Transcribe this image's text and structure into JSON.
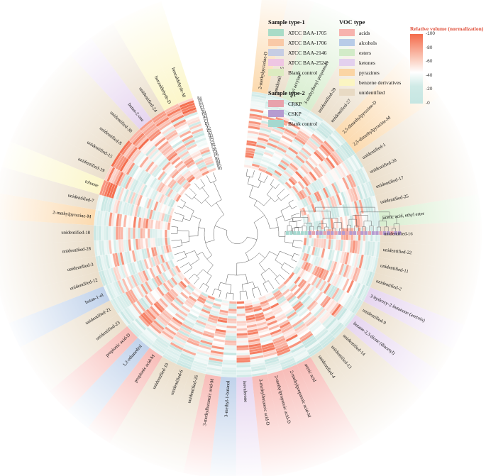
{
  "legend_sample1": {
    "title": "Sample type-1",
    "items": [
      {
        "label": "ATCC BAA-1705",
        "color": "#a9dcc7"
      },
      {
        "label": "ATCC BAA-1706",
        "color": "#f9c9a7"
      },
      {
        "label": "ATCC BAA-2146",
        "color": "#c6cde4"
      },
      {
        "label": "ATCC BAA-2524",
        "color": "#efc6e3"
      },
      {
        "label": "Blank control",
        "color": "#dcebc0"
      }
    ]
  },
  "legend_sample2": {
    "title": "Sample type-2",
    "items": [
      {
        "label": "CRKP",
        "color": "#e8a2ac"
      },
      {
        "label": "CSKP",
        "color": "#b59bd0"
      },
      {
        "label": "Blank control",
        "color": "#a5d8cf"
      }
    ]
  },
  "legend_voc": {
    "title": "VOC type",
    "items": [
      {
        "label": "acids",
        "color": "#f7b3ae"
      },
      {
        "label": "alcohols",
        "color": "#b8cce8"
      },
      {
        "label": "esters",
        "color": "#d2ebc8"
      },
      {
        "label": "ketones",
        "color": "#e3d0ee"
      },
      {
        "label": "pyrazines",
        "color": "#fbd5a4"
      },
      {
        "label": "benzene derivatives",
        "color": "#fbf5c2"
      },
      {
        "label": "unidentified",
        "color": "#e8dac4"
      }
    ]
  },
  "colorbar": {
    "title": "Relative volume (normalization)",
    "ticks": [
      "100",
      "80",
      "60",
      "40",
      "20",
      "0"
    ],
    "low_color": "#c6e6e2",
    "mid_color": "#ffffff",
    "high_color": "#f46a4a"
  },
  "chart_data": {
    "type": "heatmap",
    "layout": "circular",
    "title": "Relative volume (normalization)",
    "value_range": [
      0,
      100
    ],
    "samples": [
      "E4",
      "E6",
      "E5",
      "E3",
      "E1",
      "E2",
      "A4",
      "D4",
      "A6",
      "C4",
      "C1",
      "D1",
      "A1",
      "A2",
      "D2",
      "A3",
      "D3",
      "A5",
      "C2",
      "C3",
      "B5",
      "C5",
      "D5",
      "C6",
      "D6",
      "C7",
      "B6",
      "B4",
      "B1",
      "B2",
      "B3"
    ],
    "compounds": [
      {
        "name": "2-methylpyrazine-D",
        "type": "pyrazines"
      },
      {
        "name": "unidentified-5",
        "type": "unidentified"
      },
      {
        "name": "ethyl acrylate",
        "type": "esters"
      },
      {
        "name": "3-methylbutyl propanoate",
        "type": "esters"
      },
      {
        "name": "unidentified-29",
        "type": "unidentified"
      },
      {
        "name": "unidentified-27",
        "type": "unidentified"
      },
      {
        "name": "2,5-dimethylpyrazine-D",
        "type": "pyrazines"
      },
      {
        "name": "2,5-dimethylpyrazine-M",
        "type": "pyrazines"
      },
      {
        "name": "unidentified-1",
        "type": "unidentified"
      },
      {
        "name": "unidentified-20",
        "type": "unidentified"
      },
      {
        "name": "unidentified-17",
        "type": "unidentified"
      },
      {
        "name": "unidentified-25",
        "type": "unidentified"
      },
      {
        "name": "acetic acid, ethyl ester",
        "type": "esters"
      },
      {
        "name": "unidentified-16",
        "type": "unidentified"
      },
      {
        "name": "unidentified-22",
        "type": "unidentified"
      },
      {
        "name": "unidentified-11",
        "type": "unidentified"
      },
      {
        "name": "unidentified-2",
        "type": "unidentified"
      },
      {
        "name": "3-hydroxy-2-butanone (acetoin)",
        "type": "ketones"
      },
      {
        "name": "unidentified-9",
        "type": "unidentified"
      },
      {
        "name": "butane-2,3-dione (diacetyl)",
        "type": "ketones"
      },
      {
        "name": "unidentified-14",
        "type": "unidentified"
      },
      {
        "name": "unidentified-13",
        "type": "unidentified"
      },
      {
        "name": "unidentified-4",
        "type": "unidentified"
      },
      {
        "name": "acetic acid",
        "type": "acids"
      },
      {
        "name": "2-methylpropanoic acid-M",
        "type": "acids"
      },
      {
        "name": "2-methylpropanoic acid-D",
        "type": "acids"
      },
      {
        "name": "3-methylbutanoic acid-D",
        "type": "acids"
      },
      {
        "name": "isovalerone",
        "type": "ketones"
      },
      {
        "name": "3-methyl-1-butanol",
        "type": "alcohols"
      },
      {
        "name": "3-methylbutanoic acid-M",
        "type": "acids"
      },
      {
        "name": "unidentified-26",
        "type": "unidentified"
      },
      {
        "name": "unidentified-6",
        "type": "unidentified"
      },
      {
        "name": "unidentified-10",
        "type": "unidentified"
      },
      {
        "name": "propionic acid-M",
        "type": "acids"
      },
      {
        "name": "1,2-ethanediol",
        "type": "alcohols"
      },
      {
        "name": "propionic acid-D",
        "type": "acids"
      },
      {
        "name": "unidentified-23",
        "type": "unidentified"
      },
      {
        "name": "unidentified-21",
        "type": "unidentified"
      },
      {
        "name": "butan-1-ol",
        "type": "alcohols"
      },
      {
        "name": "unidentified-12",
        "type": "unidentified"
      },
      {
        "name": "unidentified-3",
        "type": "unidentified"
      },
      {
        "name": "unidentified-28",
        "type": "unidentified"
      },
      {
        "name": "unidentified-18",
        "type": "unidentified"
      },
      {
        "name": "2-methylpyrazine-M",
        "type": "pyrazines"
      },
      {
        "name": "unidentified-7",
        "type": "unidentified"
      },
      {
        "name": "toluene",
        "type": "benzene derivatives"
      },
      {
        "name": "unidentified-19",
        "type": "unidentified"
      },
      {
        "name": "unidentified-15",
        "type": "unidentified"
      },
      {
        "name": "unidentified-8",
        "type": "unidentified"
      },
      {
        "name": "unidentified-30",
        "type": "unidentified"
      },
      {
        "name": "butan-2-one",
        "type": "ketones"
      },
      {
        "name": "unidentified-24",
        "type": "unidentified"
      },
      {
        "name": "benzaldehyde-D",
        "type": "benzene derivatives"
      },
      {
        "name": "benzaldehyde-M",
        "type": "benzene derivatives"
      }
    ]
  }
}
